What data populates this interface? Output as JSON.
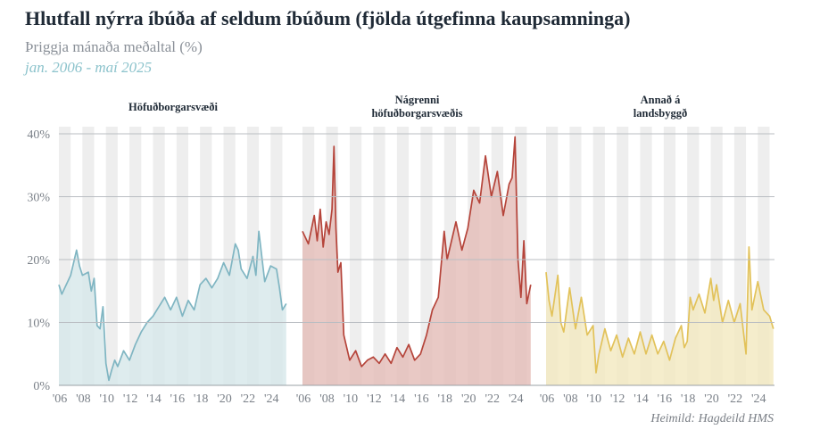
{
  "title": "Hlutfall nýrra íbúða af seldum íbúðum (fjölda útgefinna kaupsamninga)",
  "subtitle": "Þriggja mánaða meðaltal (%)",
  "period": "jan. 2006 - maí 2025",
  "source": "Heimild: Hagdeild HMS",
  "chart_data": {
    "type": "area",
    "ylim": [
      0,
      40
    ],
    "xlim": [
      "2006-01",
      "2025-05"
    ],
    "y_ticks": [
      "0%",
      "10%",
      "20%",
      "30%",
      "40%"
    ],
    "x_ticks": [
      "'06",
      "'08",
      "'10",
      "'12",
      "'14",
      "'16",
      "'18",
      "'20",
      "'22",
      "'24"
    ],
    "grid": true,
    "shaded_alternate_years": true,
    "panels": [
      {
        "title": [
          "Höfuðborgarsvæði"
        ],
        "color": "#7fb5c2",
        "fill": "#d6e7ea",
        "x": [
          2006.0,
          2006.25,
          2006.5,
          2007.0,
          2007.5,
          2007.75,
          2008.0,
          2008.5,
          2008.75,
          2009.0,
          2009.25,
          2009.5,
          2009.75,
          2010.0,
          2010.25,
          2010.5,
          2010.75,
          2011.0,
          2011.5,
          2012.0,
          2012.5,
          2013.0,
          2013.5,
          2014.0,
          2014.5,
          2015.0,
          2015.5,
          2016.0,
          2016.5,
          2017.0,
          2017.5,
          2018.0,
          2018.5,
          2019.0,
          2019.5,
          2020.0,
          2020.5,
          2021.0,
          2021.25,
          2021.5,
          2022.0,
          2022.5,
          2022.75,
          2023.0,
          2023.5,
          2024.0,
          2024.5,
          2024.75,
          2025.0,
          2025.33
        ],
        "y": [
          16,
          14.5,
          15.5,
          17.5,
          21.5,
          19,
          17.5,
          18,
          15,
          17,
          9.5,
          9,
          12.5,
          3.5,
          0.8,
          2.5,
          4,
          3,
          5.5,
          4,
          6.5,
          8.5,
          10,
          11,
          12.5,
          14,
          12,
          14,
          11,
          13.5,
          12,
          16,
          17,
          15.5,
          17,
          19.5,
          17.5,
          22.5,
          21.5,
          18.5,
          17,
          20.5,
          17.5,
          24.5,
          16.5,
          19,
          18.5,
          15.5,
          12,
          13
        ]
      },
      {
        "title": [
          "Nágrenni",
          "höfuðborgarsvæðis"
        ],
        "color": "#b5443a",
        "fill": "#e4bcb7",
        "x": [
          2006.0,
          2006.5,
          2007.0,
          2007.25,
          2007.5,
          2007.75,
          2008.0,
          2008.25,
          2008.5,
          2008.67,
          2008.83,
          2009.0,
          2009.25,
          2009.5,
          2009.75,
          2010.0,
          2010.5,
          2011.0,
          2011.5,
          2012.0,
          2012.5,
          2013.0,
          2013.5,
          2014.0,
          2014.5,
          2015.0,
          2015.5,
          2016.0,
          2016.5,
          2017.0,
          2017.5,
          2018.0,
          2018.25,
          2018.5,
          2019.0,
          2019.5,
          2020.0,
          2020.5,
          2021.0,
          2021.5,
          2022.0,
          2022.5,
          2023.0,
          2023.5,
          2023.75,
          2024.0,
          2024.25,
          2024.5,
          2024.75,
          2025.0,
          2025.33
        ],
        "y": [
          24.5,
          22.5,
          27,
          23,
          28,
          22,
          26,
          24,
          28,
          38,
          25,
          18,
          19.5,
          8,
          6,
          4,
          5.5,
          3,
          4,
          4.5,
          3.5,
          5,
          3.5,
          6,
          4.5,
          6.5,
          4,
          5,
          8,
          12,
          14,
          24.5,
          20,
          22,
          26,
          21.5,
          25,
          31,
          29,
          36.5,
          30,
          34,
          27,
          32,
          33,
          39.5,
          20,
          14,
          23,
          13,
          16
        ]
      },
      {
        "title": [
          "Annað á",
          "landsbyggð"
        ],
        "color": "#e2c25a",
        "fill": "#f2e8bf",
        "x": [
          2006.0,
          2006.25,
          2006.5,
          2007.0,
          2007.25,
          2007.5,
          2008.0,
          2008.5,
          2009.0,
          2009.5,
          2010.0,
          2010.25,
          2010.5,
          2011.0,
          2011.5,
          2012.0,
          2012.5,
          2013.0,
          2013.5,
          2014.0,
          2014.5,
          2015.0,
          2015.5,
          2016.0,
          2016.5,
          2017.0,
          2017.5,
          2017.75,
          2018.0,
          2018.25,
          2018.5,
          2019.0,
          2019.5,
          2020.0,
          2020.25,
          2020.5,
          2021.0,
          2021.5,
          2022.0,
          2022.5,
          2023.0,
          2023.25,
          2023.5,
          2024.0,
          2024.5,
          2025.0,
          2025.33
        ],
        "y": [
          18,
          13.5,
          11,
          17.5,
          10,
          8.5,
          15.5,
          9,
          14,
          8,
          9.5,
          2,
          5,
          9,
          5.5,
          8,
          4.5,
          7.5,
          5,
          8.5,
          5,
          8,
          5,
          7,
          4,
          7.5,
          9.5,
          6,
          7,
          14,
          12,
          14.5,
          11.5,
          17,
          13.5,
          16,
          10,
          13.5,
          10,
          13,
          5,
          22,
          12,
          16.5,
          12,
          11,
          9
        ]
      }
    ]
  }
}
